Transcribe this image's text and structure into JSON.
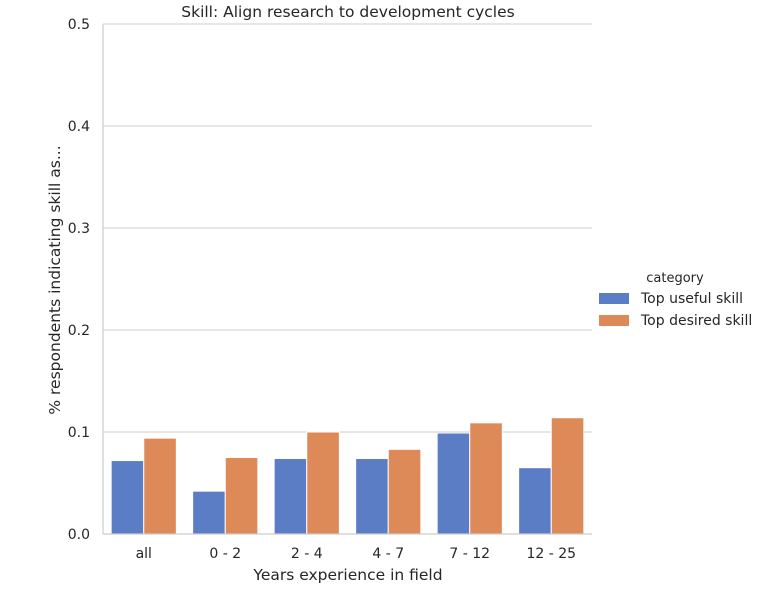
{
  "chart_data": {
    "type": "bar",
    "title": "Skill: Align research to development cycles",
    "xlabel": "Years experience in field",
    "ylabel": "% respondents indicating skill as...",
    "categories": [
      "all",
      "0 - 2",
      "2 - 4",
      "4 - 7",
      "7 - 12",
      "12 - 25"
    ],
    "ylim": [
      0,
      0.5
    ],
    "yticks": [
      "0.0",
      "0.1",
      "0.2",
      "0.3",
      "0.4",
      "0.5"
    ],
    "grid": "horizontal",
    "legend": {
      "title": "category",
      "placement": "right"
    },
    "series": [
      {
        "name": "Top useful skill",
        "color": "#5a7dc6",
        "values": [
          0.072,
          0.042,
          0.074,
          0.074,
          0.099,
          0.065
        ]
      },
      {
        "name": "Top desired skill",
        "color": "#dd8a58",
        "values": [
          0.094,
          0.075,
          0.1,
          0.083,
          0.109,
          0.114
        ]
      }
    ]
  }
}
